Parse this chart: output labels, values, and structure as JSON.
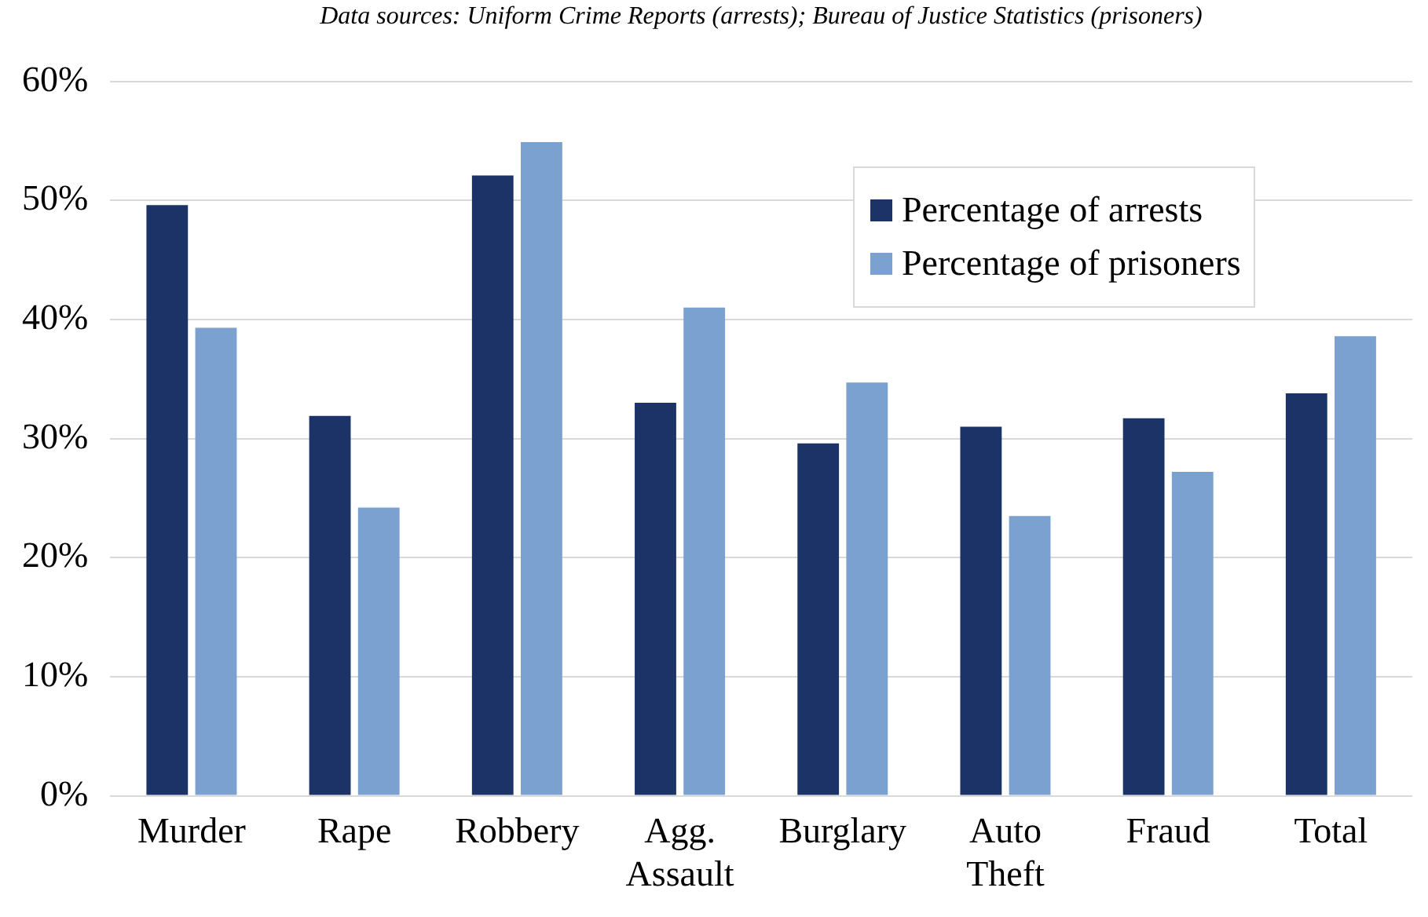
{
  "chart_data": {
    "type": "bar",
    "subtitle": "Data sources: Uniform Crime Reports (arrests); Bureau of Justice Statistics (prisoners)",
    "categories": [
      "Murder",
      "Rape",
      "Robbery",
      "Agg. Assault",
      "Burglary",
      "Auto Theft",
      "Fraud",
      "Total"
    ],
    "series": [
      {
        "name": "Percentage of arrests",
        "color": "#1b3366",
        "values": [
          49.6,
          31.9,
          52.1,
          33.0,
          29.6,
          31.0,
          31.7,
          33.8
        ]
      },
      {
        "name": "Percentage of prisoners",
        "color": "#7aa1cf",
        "values": [
          39.3,
          24.2,
          54.9,
          41.0,
          34.7,
          23.5,
          27.2,
          38.6
        ]
      }
    ],
    "ylim": [
      0,
      60
    ],
    "yticks": [
      {
        "value": 0,
        "label": "0%"
      },
      {
        "value": 10,
        "label": "10%"
      },
      {
        "value": 20,
        "label": "20%"
      },
      {
        "value": 30,
        "label": "30%"
      },
      {
        "value": 40,
        "label": "40%"
      },
      {
        "value": 50,
        "label": "50%"
      },
      {
        "value": 60,
        "label": "60%"
      }
    ],
    "grid": "y",
    "legend": "top right"
  }
}
